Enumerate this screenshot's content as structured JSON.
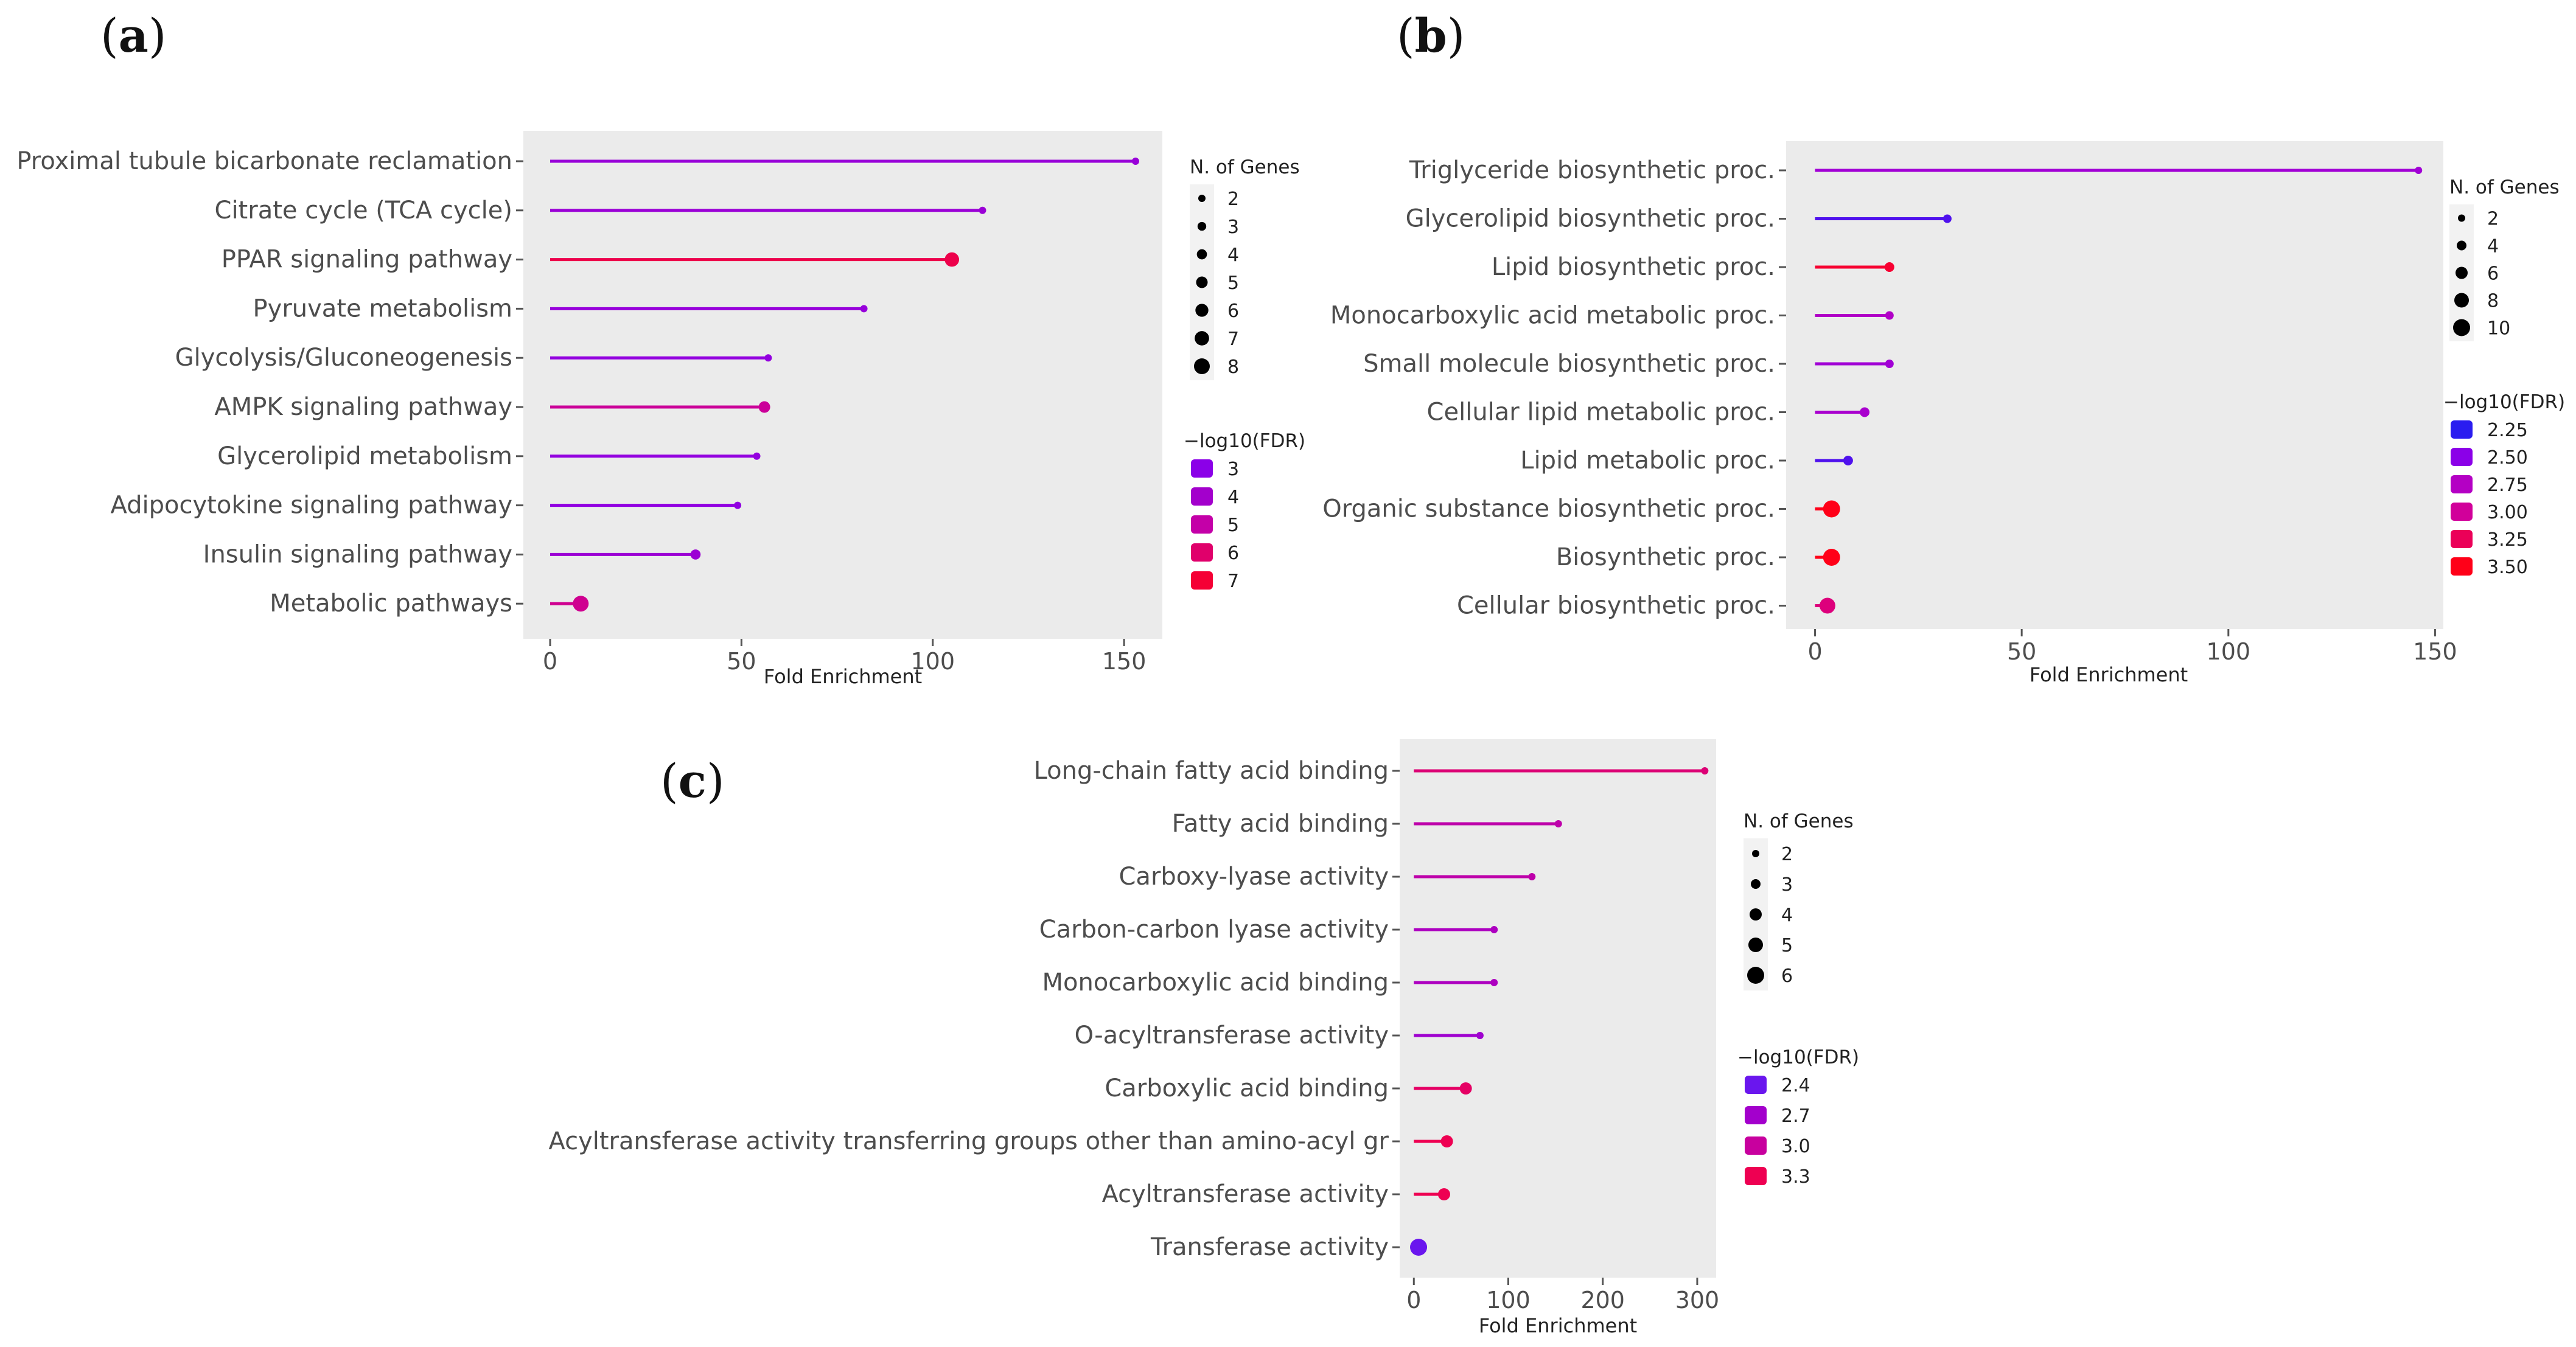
{
  "chart_data": [
    {
      "panel": "a",
      "type": "lollipop",
      "xlabel": "Fold Enrichment",
      "xlim": [
        -7,
        160
      ],
      "xticks": [
        0,
        50,
        100,
        150
      ],
      "size_legend_title": "N. of Genes",
      "size_legend": [
        2,
        3,
        4,
        5,
        6,
        7,
        8
      ],
      "size_range": [
        2,
        8
      ],
      "color_legend_title": "−log10(FDR)",
      "color_legend": [
        "3",
        "4",
        "5",
        "6",
        "7"
      ],
      "color_legend_colors": [
        "#8b00e8",
        "#a300cc",
        "#c400a8",
        "#e0006b",
        "#f50035"
      ],
      "color_range": [
        2.5,
        7.5
      ],
      "categories": [
        "Proximal tubule bicarbonate reclamation",
        "Citrate cycle (TCA cycle)",
        "PPAR signaling pathway",
        "Pyruvate metabolism",
        "Glycolysis/Gluconeogenesis",
        "AMPK signaling pathway",
        "Glycerolipid metabolism",
        "Adipocytokine signaling pathway",
        "Insulin signaling pathway",
        "Metabolic pathways"
      ],
      "values": [
        153,
        113,
        105,
        82,
        57,
        56,
        54,
        49,
        38,
        8
      ],
      "n_genes": [
        2,
        2,
        7,
        2,
        2,
        5,
        2,
        2,
        4,
        8
      ],
      "fdr": [
        3.2,
        3.3,
        7.0,
        3.1,
        2.9,
        5.3,
        2.9,
        2.8,
        3.4,
        5.5
      ]
    },
    {
      "panel": "b",
      "type": "lollipop",
      "xlabel": "Fold Enrichment",
      "xlim": [
        -7,
        152
      ],
      "xticks": [
        0,
        50,
        100,
        150
      ],
      "size_legend_title": "N. of Genes",
      "size_legend": [
        2,
        4,
        6,
        8,
        10
      ],
      "size_range": [
        2,
        10
      ],
      "color_legend_title": "−log10(FDR)",
      "color_legend": [
        "2.25",
        "2.50",
        "2.75",
        "3.00",
        "3.25",
        "3.50"
      ],
      "color_legend_colors": [
        "#2a1cf0",
        "#8b00e8",
        "#b400c4",
        "#d1009a",
        "#eb0058",
        "#ff0018"
      ],
      "color_range": [
        2.2,
        3.5
      ],
      "categories": [
        "Triglyceride biosynthetic proc.",
        "Glycerolipid biosynthetic proc.",
        "Lipid biosynthetic proc.",
        "Monocarboxylic acid metabolic proc.",
        "Small molecule biosynthetic proc.",
        "Cellular lipid metabolic proc.",
        "Lipid metabolic proc.",
        "Organic substance biosynthetic proc.",
        "Biosynthetic proc.",
        "Cellular biosynthetic proc."
      ],
      "values": [
        146,
        32,
        18,
        18,
        18,
        12,
        8,
        4,
        4,
        3
      ],
      "n_genes": [
        2,
        3,
        4,
        3,
        3,
        4,
        4,
        10,
        10,
        9
      ],
      "fdr": [
        2.6,
        2.3,
        3.4,
        2.7,
        2.6,
        2.65,
        2.3,
        3.5,
        3.5,
        3.1
      ]
    },
    {
      "panel": "c",
      "type": "lollipop",
      "xlabel": "Fold Enrichment",
      "xlim": [
        -15,
        320
      ],
      "xticks": [
        0,
        100,
        200,
        300
      ],
      "xtick_labels": [
        "0",
        "100",
        "200",
        "300"
      ],
      "size_legend_title": "N. of Genes",
      "size_legend": [
        2,
        3,
        4,
        5,
        6
      ],
      "size_range": [
        2,
        6
      ],
      "color_legend_title": "−log10(FDR)",
      "color_legend": [
        "2.4",
        "2.7",
        "3.0",
        "3.3"
      ],
      "color_legend_colors": [
        "#6a16ee",
        "#a300cc",
        "#c8009e",
        "#ee0052"
      ],
      "color_range": [
        2.2,
        3.5
      ],
      "categories": [
        "Long-chain fatty acid binding",
        "Fatty acid binding",
        "Carboxy-lyase activity",
        "Carbon-carbon lyase activity",
        "Monocarboxylic acid binding",
        "O-acyltransferase activity",
        "Carboxylic acid binding",
        "Acyltransferase activity transferring groups other than amino-acyl gr",
        "Acyltransferase activity",
        "Transferase activity"
      ],
      "values": [
        308,
        153,
        125,
        85,
        85,
        70,
        55,
        35,
        32,
        5
      ],
      "n_genes": [
        2,
        2,
        2,
        2,
        2,
        2,
        4,
        4,
        4,
        6
      ],
      "fdr": [
        3.3,
        2.95,
        2.95,
        2.75,
        2.75,
        2.6,
        3.4,
        3.5,
        3.5,
        2.2
      ]
    }
  ],
  "panel_labels": {
    "a": {
      "open": "(",
      "letter": "a",
      "close": ")"
    },
    "b": {
      "open": "(",
      "letter": "b",
      "close": ")"
    },
    "c": {
      "open": "(",
      "letter": "c",
      "close": ")"
    }
  }
}
